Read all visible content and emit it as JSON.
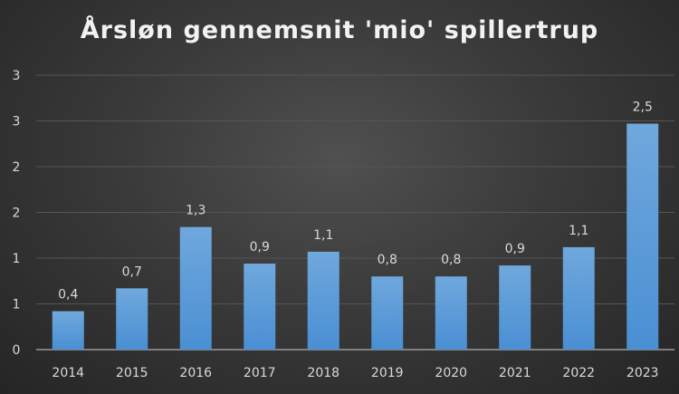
{
  "chart_data": {
    "type": "bar",
    "title": "Årsløn gennemsnit 'mio' spillertrup",
    "xlabel": "",
    "ylabel": "",
    "categories": [
      "2014",
      "2015",
      "2016",
      "2017",
      "2018",
      "2019",
      "2020",
      "2021",
      "2022",
      "2023"
    ],
    "values": [
      0.42,
      0.67,
      1.34,
      0.94,
      1.07,
      0.8,
      0.8,
      0.92,
      1.12,
      2.47
    ],
    "data_labels": [
      "0,4",
      "0,7",
      "1,3",
      "0,9",
      "1,1",
      "0,8",
      "0,8",
      "0,9",
      "1,1",
      "2,5"
    ],
    "ylim": [
      0,
      3
    ],
    "yticks": [
      0,
      0.5,
      1,
      1.5,
      2,
      2.5,
      3
    ],
    "ytick_labels": [
      "0",
      "1",
      "1",
      "2",
      "2",
      "3",
      "3"
    ],
    "grid": true,
    "colors": {
      "bar_top": "#6fa8dc",
      "bar_bottom": "#4a8fd4",
      "grid": "#555555",
      "text": "#d9d9d9"
    }
  }
}
